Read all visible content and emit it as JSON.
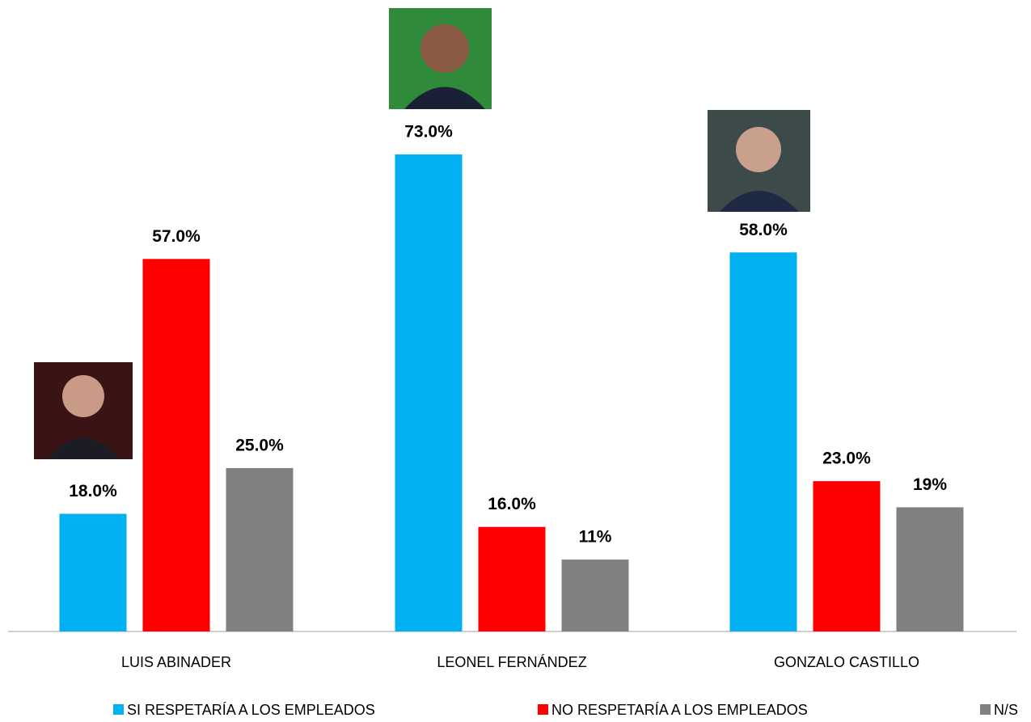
{
  "chart_data": {
    "type": "bar",
    "categories": [
      "LUIS ABINADER",
      "LEONEL FERNÁNDEZ",
      "GONZALO CASTILLO"
    ],
    "series": [
      {
        "name": "SI RESPETARÍA A LOS EMPLEADOS",
        "color": "#00b0f0",
        "values": [
          18,
          73,
          58
        ],
        "value_labels": [
          "18.0%",
          "73.0%",
          "58.0%"
        ]
      },
      {
        "name": "NO RESPETARÍA A LOS EMPLEADOS",
        "color": "#ff0000",
        "values": [
          57,
          16,
          23
        ],
        "value_labels": [
          "57.0%",
          "16.0%",
          "23.0%"
        ]
      },
      {
        "name": "N/S",
        "color": "#808080",
        "values": [
          25,
          11,
          19
        ],
        "value_labels": [
          "25.0%",
          "11%",
          "19%"
        ]
      }
    ]
  }
}
